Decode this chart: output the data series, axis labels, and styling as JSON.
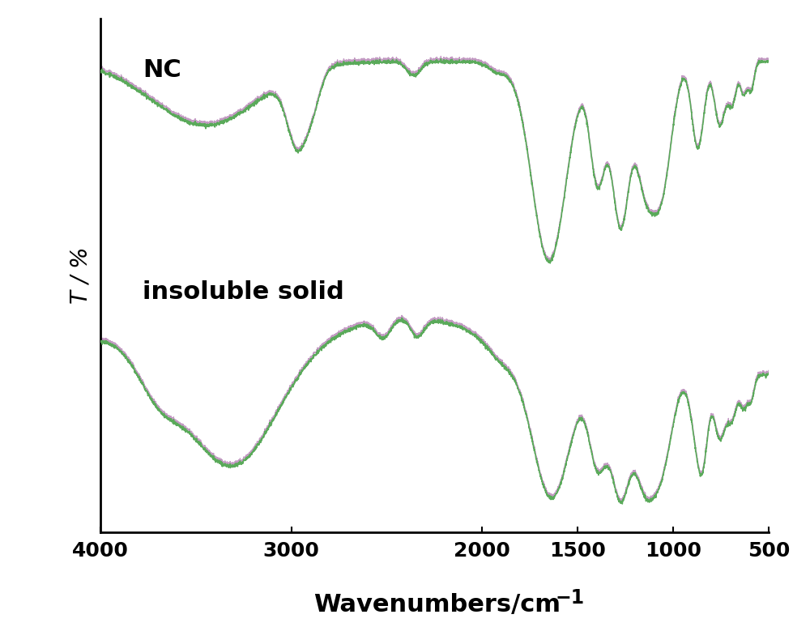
{
  "xlabel": "Wavenumbers/cm",
  "xlabel_superscript": "-1",
  "ylabel": "T / %",
  "label_nc": "NC",
  "label_is": "insoluble solid",
  "line_color_green": "#5aaa5a",
  "line_color_purple": "#aa70aa",
  "background_color": "#ffffff",
  "x_min": 500,
  "x_max": 4000,
  "xticks": [
    4000,
    3000,
    2000,
    1500,
    1000,
    500
  ],
  "xlabel_fontsize": 22,
  "ylabel_fontsize": 20,
  "label_fontsize": 22,
  "tick_fontsize": 18
}
